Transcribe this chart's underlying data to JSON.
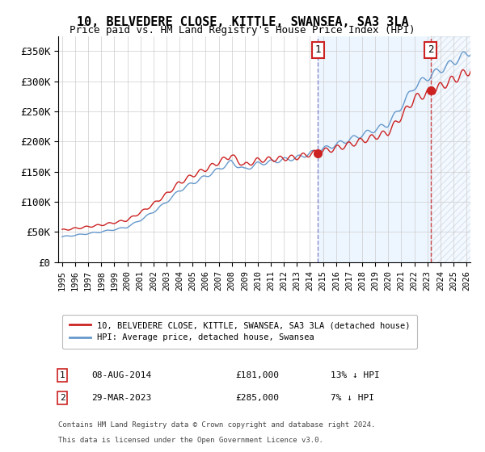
{
  "title": "10, BELVEDERE CLOSE, KITTLE, SWANSEA, SA3 3LA",
  "subtitle": "Price paid vs. HM Land Registry's House Price Index (HPI)",
  "hpi_label": "HPI: Average price, detached house, Swansea",
  "property_label": "10, BELVEDERE CLOSE, KITTLE, SWANSEA, SA3 3LA (detached house)",
  "hpi_color": "#6699cc",
  "property_color": "#cc2222",
  "marker_color": "#cc2222",
  "bg_shaded_color": "#ddeeff",
  "hatch_color": "#aabbcc",
  "sale1_date_num": 2014.6,
  "sale1_label": "08-AUG-2014",
  "sale1_price": "£181,000",
  "sale1_pct": "13% ↓ HPI",
  "sale1_val": 181000,
  "sale2_date_num": 2023.25,
  "sale2_label": "29-MAR-2023",
  "sale2_price": "£285,000",
  "sale2_pct": "7% ↓ HPI",
  "sale2_val": 285000,
  "ylim": [
    0,
    375000
  ],
  "xlim_start": 1995,
  "xlim_end": 2026,
  "yticks": [
    0,
    50000,
    100000,
    150000,
    200000,
    250000,
    300000,
    350000
  ],
  "ytick_labels": [
    "£0",
    "£50K",
    "£100K",
    "£150K",
    "£200K",
    "£250K",
    "£300K",
    "£350K"
  ],
  "xticks": [
    1995,
    1996,
    1997,
    1998,
    1999,
    2000,
    2001,
    2002,
    2003,
    2004,
    2005,
    2006,
    2007,
    2008,
    2009,
    2010,
    2011,
    2012,
    2013,
    2014,
    2015,
    2016,
    2017,
    2018,
    2019,
    2020,
    2021,
    2022,
    2023,
    2024,
    2025,
    2026
  ],
  "footer_line1": "Contains HM Land Registry data © Crown copyright and database right 2024.",
  "footer_line2": "This data is licensed under the Open Government Licence v3.0."
}
